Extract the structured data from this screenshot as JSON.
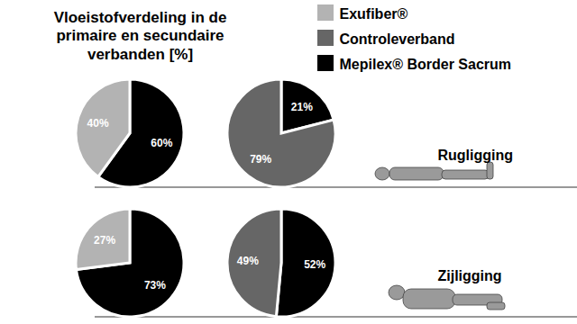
{
  "chart_data": {
    "type": "pie",
    "title": "Vloeistofverdeling in de\nprimaire en secundaire\nverbanden [%]",
    "legend": "top-right",
    "data_labels": true,
    "series": [
      {
        "name": "Exufiber®",
        "color": "#b3b3b3"
      },
      {
        "name": "Controleverband",
        "color": "#666666"
      },
      {
        "name": "Mepilex® Border Sacrum",
        "color": "#000000"
      }
    ],
    "pies": [
      {
        "group": "Rugligging",
        "categories": [
          "Mepilex® Border Sacrum",
          "Exufiber®"
        ],
        "values": [
          60,
          40
        ],
        "value_labels": [
          "60%",
          "40%"
        ]
      },
      {
        "group": "Rugligging",
        "categories": [
          "Mepilex® Border Sacrum",
          "Controleverband"
        ],
        "values": [
          21,
          79
        ],
        "value_labels": [
          "21%",
          "79%"
        ]
      },
      {
        "group": "Zijligging",
        "categories": [
          "Mepilex® Border Sacrum",
          "Exufiber®"
        ],
        "values": [
          73,
          27
        ],
        "value_labels": [
          "73%",
          "27%"
        ]
      },
      {
        "group": "Zijligging",
        "categories": [
          "Mepilex® Border Sacrum",
          "Controleverband"
        ],
        "values": [
          52,
          49
        ],
        "value_labels": [
          "52%",
          "49%"
        ]
      }
    ]
  }
}
